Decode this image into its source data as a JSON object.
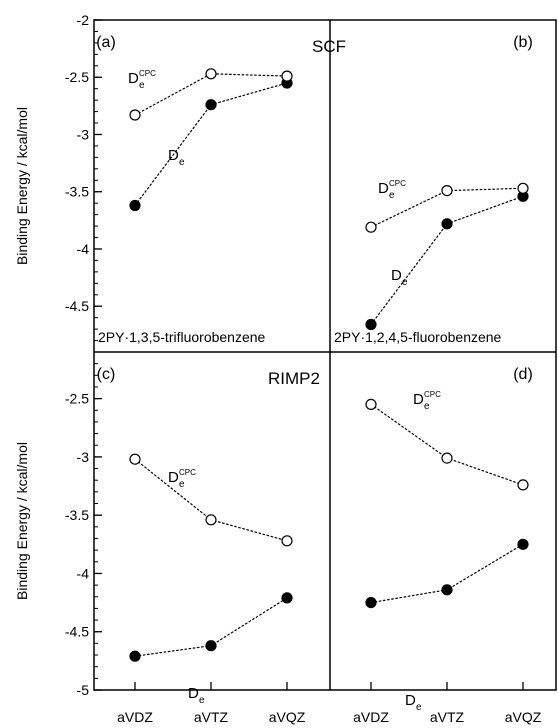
{
  "chart_data": [
    {
      "type": "line",
      "panel": "(a)",
      "method": "SCF",
      "system": "2PY·1,3,5-trifluorobenzene",
      "categories": [
        "aVDZ",
        "aVTZ",
        "aVQZ"
      ],
      "ylabel": "Binding Energy / kcal/mol",
      "ylim": [
        -4.9,
        -2
      ],
      "yticks": [
        "-2",
        "-2.5",
        "-3",
        "-3.5",
        "-4",
        "-4.5"
      ],
      "series": [
        {
          "name": "De",
          "label_main": "D",
          "label_sub": "e",
          "label_sup": "",
          "marker": "filled",
          "values": [
            -3.62,
            -2.74,
            -2.55
          ]
        },
        {
          "name": "DeCPC",
          "label_main": "D",
          "label_sub": "e",
          "label_sup": "CPC",
          "marker": "open",
          "values": [
            -2.83,
            -2.47,
            -2.49
          ]
        }
      ]
    },
    {
      "type": "line",
      "panel": "(b)",
      "method": "",
      "system": "2PY·1,2,4,5-fluorobenzene",
      "categories": [
        "aVDZ",
        "aVTZ",
        "aVQZ"
      ],
      "ylim": [
        -4.9,
        -2
      ],
      "series": [
        {
          "name": "De",
          "label_main": "D",
          "label_sub": "e",
          "label_sup": "",
          "marker": "filled",
          "values": [
            -4.66,
            -3.78,
            -3.54
          ]
        },
        {
          "name": "DeCPC",
          "label_main": "D",
          "label_sub": "e",
          "label_sup": "CPC",
          "marker": "open",
          "values": [
            -3.81,
            -3.49,
            -3.47
          ]
        }
      ]
    },
    {
      "type": "line",
      "panel": "(c)",
      "method": "RIMP2",
      "system": "",
      "categories": [
        "aVDZ",
        "aVTZ",
        "aVQZ"
      ],
      "xticks": [
        "aVDZ",
        "aVTZ",
        "aVQZ"
      ],
      "ylabel": "Binding Energy / kcal/mol",
      "ylim": [
        -5,
        -2.1
      ],
      "yticks": [
        "-2.5",
        "-3",
        "-3.5",
        "-4",
        "-4.5",
        "-5"
      ],
      "series": [
        {
          "name": "De",
          "label_main": "D",
          "label_sub": "e",
          "label_sup": "",
          "marker": "filled",
          "values": [
            -4.71,
            -4.62,
            -4.21
          ]
        },
        {
          "name": "DeCPC",
          "label_main": "D",
          "label_sub": "e",
          "label_sup": "CPC",
          "marker": "open",
          "values": [
            -3.02,
            -3.54,
            -3.72
          ]
        }
      ]
    },
    {
      "type": "line",
      "panel": "(d)",
      "method": "",
      "system": "",
      "categories": [
        "aVDZ",
        "aVTZ",
        "aVQZ"
      ],
      "xticks": [
        "aVDZ",
        "aVTZ",
        "aVQZ"
      ],
      "ylim": [
        -5,
        -2.1
      ],
      "series": [
        {
          "name": "De",
          "label_main": "D",
          "label_sub": "e",
          "label_sup": "",
          "marker": "filled",
          "values": [
            -4.25,
            -4.14,
            -3.75
          ]
        },
        {
          "name": "DeCPC",
          "label_main": "D",
          "label_sub": "e",
          "label_sup": "CPC",
          "marker": "open",
          "values": [
            -2.55,
            -3.01,
            -3.24
          ]
        }
      ]
    }
  ]
}
